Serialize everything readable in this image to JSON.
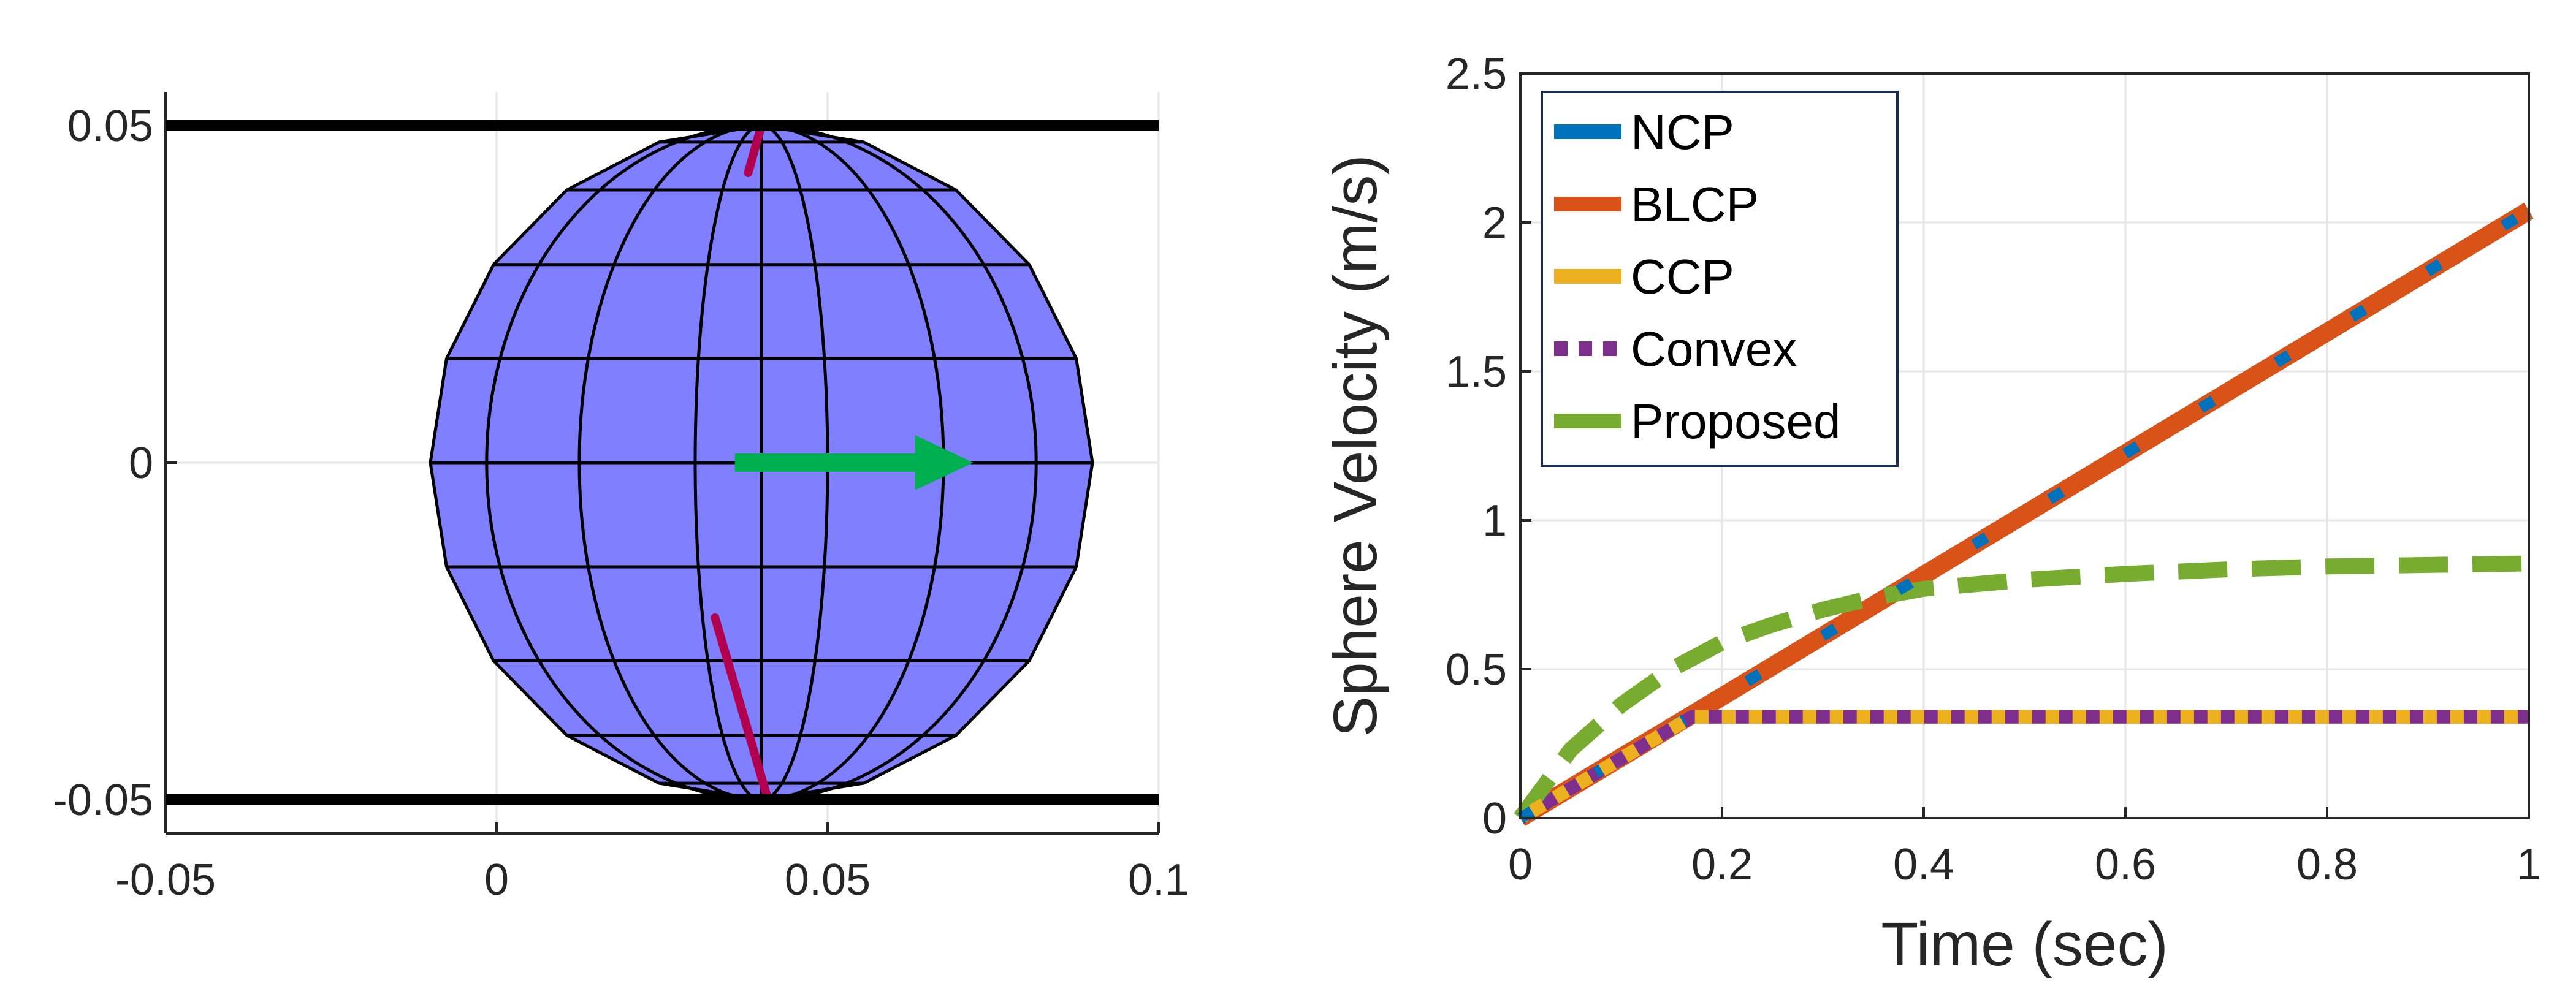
{
  "colors": {
    "wall": "#000000",
    "sphere_fill": "#7f7fff",
    "sphere_edge": "#000000",
    "arrow": "#00b050",
    "marker": "#b0004f",
    "axis": "#262626",
    "grid": "#e6e6e6"
  },
  "chart_data": [
    {
      "type": "scatter",
      "title": "",
      "xlabel": "",
      "ylabel": "",
      "xlim": [
        -0.05,
        0.1
      ],
      "ylim": [
        -0.055,
        0.055
      ],
      "x_ticks": [
        -0.05,
        0,
        0.05,
        0.1
      ],
      "x_tick_labels": [
        "-0.05",
        "0",
        "0.05",
        "0.1"
      ],
      "y_ticks": [
        -0.05,
        0,
        0.05
      ],
      "y_tick_labels": [
        "-0.05",
        "0",
        "0.05"
      ],
      "grid": true,
      "walls": [
        {
          "y": 0.05,
          "x": [
            -0.05,
            0.1
          ]
        },
        {
          "y": -0.05,
          "x": [
            -0.05,
            0.1
          ]
        }
      ],
      "sphere": {
        "center": [
          0.04,
          0
        ],
        "radius": 0.05
      },
      "velocity_arrow": {
        "from": [
          0.036,
          0
        ],
        "to": [
          0.072,
          0
        ]
      },
      "markers": [
        {
          "from": [
            0.04,
            0.05
          ],
          "to": [
            0.038,
            0.043
          ]
        },
        {
          "from": [
            0.041,
            -0.05
          ],
          "to": [
            0.033,
            -0.023
          ]
        }
      ]
    },
    {
      "type": "line",
      "title": "",
      "xlabel": "Time (sec)",
      "ylabel": "Sphere Velocity (m/s)",
      "xlim": [
        0,
        1
      ],
      "ylim": [
        0,
        2.5
      ],
      "x_ticks": [
        0,
        0.2,
        0.4,
        0.6,
        0.8,
        1
      ],
      "x_tick_labels": [
        "0",
        "0.2",
        "0.4",
        "0.6",
        "0.8",
        "1"
      ],
      "y_ticks": [
        0,
        0.5,
        1,
        1.5,
        2,
        2.5
      ],
      "y_tick_labels": [
        "0",
        "0.5",
        "1",
        "1.5",
        "2",
        "2.5"
      ],
      "grid": true,
      "legend_position": "top-left",
      "series": [
        {
          "name": "NCP",
          "color": "#0072bd",
          "style": "solid",
          "x": [
            0,
            1
          ],
          "y": [
            0,
            2.04
          ]
        },
        {
          "name": "BLCP",
          "color": "#d95319",
          "style": "solid",
          "x": [
            0,
            1
          ],
          "y": [
            0,
            2.04
          ]
        },
        {
          "name": "CCP",
          "color": "#edb120",
          "style": "solid",
          "x": [
            0,
            0.17,
            1
          ],
          "y": [
            0,
            0.34,
            0.34
          ]
        },
        {
          "name": "Convex",
          "color": "#7e2f8e",
          "style": "dotted",
          "x": [
            0,
            0.17,
            1
          ],
          "y": [
            0,
            0.34,
            0.34
          ]
        },
        {
          "name": "Proposed",
          "color": "#77ac30",
          "style": "dashed",
          "x": [
            0,
            0.05,
            0.1,
            0.15,
            0.2,
            0.25,
            0.3,
            0.35,
            0.4,
            0.5,
            0.6,
            0.7,
            0.8,
            0.9,
            1
          ],
          "y": [
            0,
            0.23,
            0.38,
            0.5,
            0.59,
            0.65,
            0.7,
            0.74,
            0.77,
            0.8,
            0.82,
            0.835,
            0.845,
            0.85,
            0.855
          ]
        }
      ]
    }
  ]
}
